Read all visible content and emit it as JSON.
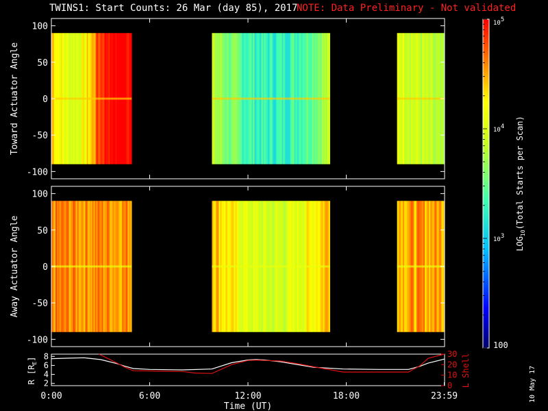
{
  "title": "TWINS1: Start Counts: 26 Mar (day  85), 2017",
  "note": "NOTE: Data Preliminary - Not validated",
  "side_date": "10 May 17",
  "colors": {
    "note": "#ff2020",
    "r_line": "#ffffff",
    "lshell_line": "#e01010",
    "background": "#000000"
  },
  "chart_data": [
    {
      "type": "heatmap",
      "panel": "toward",
      "ylabel": "Toward Actuator Angle",
      "yticks": [
        -100,
        -50,
        0,
        50,
        100
      ],
      "ylim": [
        -110,
        110
      ],
      "xlim_hours": [
        0,
        24
      ],
      "data_blocks_hours": [
        [
          0.0,
          4.9
        ],
        [
          9.8,
          17.0
        ],
        [
          21.1,
          23.98
        ]
      ],
      "angle_range": [
        -90,
        90
      ],
      "log_scale": true
    },
    {
      "type": "heatmap",
      "panel": "away",
      "ylabel": "Away Actuator Angle",
      "yticks": [
        -100,
        -50,
        0,
        50,
        100
      ],
      "ylim": [
        -110,
        110
      ],
      "xlim_hours": [
        0,
        24
      ],
      "data_blocks_hours": [
        [
          0.0,
          4.9
        ],
        [
          9.8,
          17.0
        ],
        [
          21.1,
          23.98
        ]
      ],
      "angle_range": [
        -90,
        90
      ],
      "log_scale": true
    },
    {
      "type": "line",
      "panel": "orbit",
      "ylabel_left": "R [R",
      "ylabel_left_sub": "E",
      "ylabel_right": "L Shell",
      "yticks_left": [
        2,
        4,
        6,
        8
      ],
      "ylim_left": [
        1.5,
        8.5
      ],
      "yticks_right": [
        0,
        10,
        20,
        30
      ],
      "ylim_right": [
        0,
        30
      ],
      "xlabel": "Time (UT)",
      "xticks": [
        "0:00",
        "6:00",
        "12:00",
        "18:00",
        "23:59"
      ],
      "xtick_hours": [
        0,
        6,
        12,
        18,
        23.98
      ],
      "series": [
        {
          "name": "R",
          "axis": "left",
          "x": [
            0,
            1,
            2,
            3,
            4,
            4.5,
            5,
            6,
            8,
            9.8,
            11,
            12,
            12.5,
            13,
            14,
            16,
            17.8,
            20,
            21.8,
            22.5,
            23,
            23.98
          ],
          "values": [
            7.5,
            7.6,
            7.7,
            7.3,
            6.4,
            5.8,
            5.3,
            5.1,
            5.0,
            5.2,
            6.6,
            7.2,
            7.3,
            7.2,
            6.8,
            5.6,
            5.2,
            5.1,
            5.1,
            5.8,
            6.5,
            7.4
          ]
        },
        {
          "name": "L Shell",
          "axis": "right",
          "x": [
            2.9,
            3.5,
            4.0,
            4.5,
            5.0,
            6,
            8,
            8.8,
            9.8,
            11,
            12,
            12.5,
            13,
            14,
            15,
            16,
            17.8,
            20,
            21.8,
            22.5,
            23,
            23.98
          ],
          "values": [
            30,
            25.5,
            21.5,
            17.5,
            14.2,
            14.0,
            13.5,
            12.0,
            11.6,
            20.0,
            24.0,
            24.3,
            24.0,
            23.5,
            21.0,
            18.0,
            13.0,
            13.0,
            13.0,
            19.0,
            26.0,
            30
          ]
        }
      ]
    }
  ],
  "colorbar": {
    "label_prefix": "LOG",
    "label_sub": "10",
    "label_suffix": "(Total Starts per Scan)",
    "ticks": [
      {
        "base": "10",
        "exp": "5",
        "value": 100000
      },
      {
        "base": "10",
        "exp": "4",
        "value": 10000
      },
      {
        "base": "10",
        "exp": "3",
        "value": 1000
      },
      {
        "text": "100",
        "value": 100
      }
    ]
  }
}
